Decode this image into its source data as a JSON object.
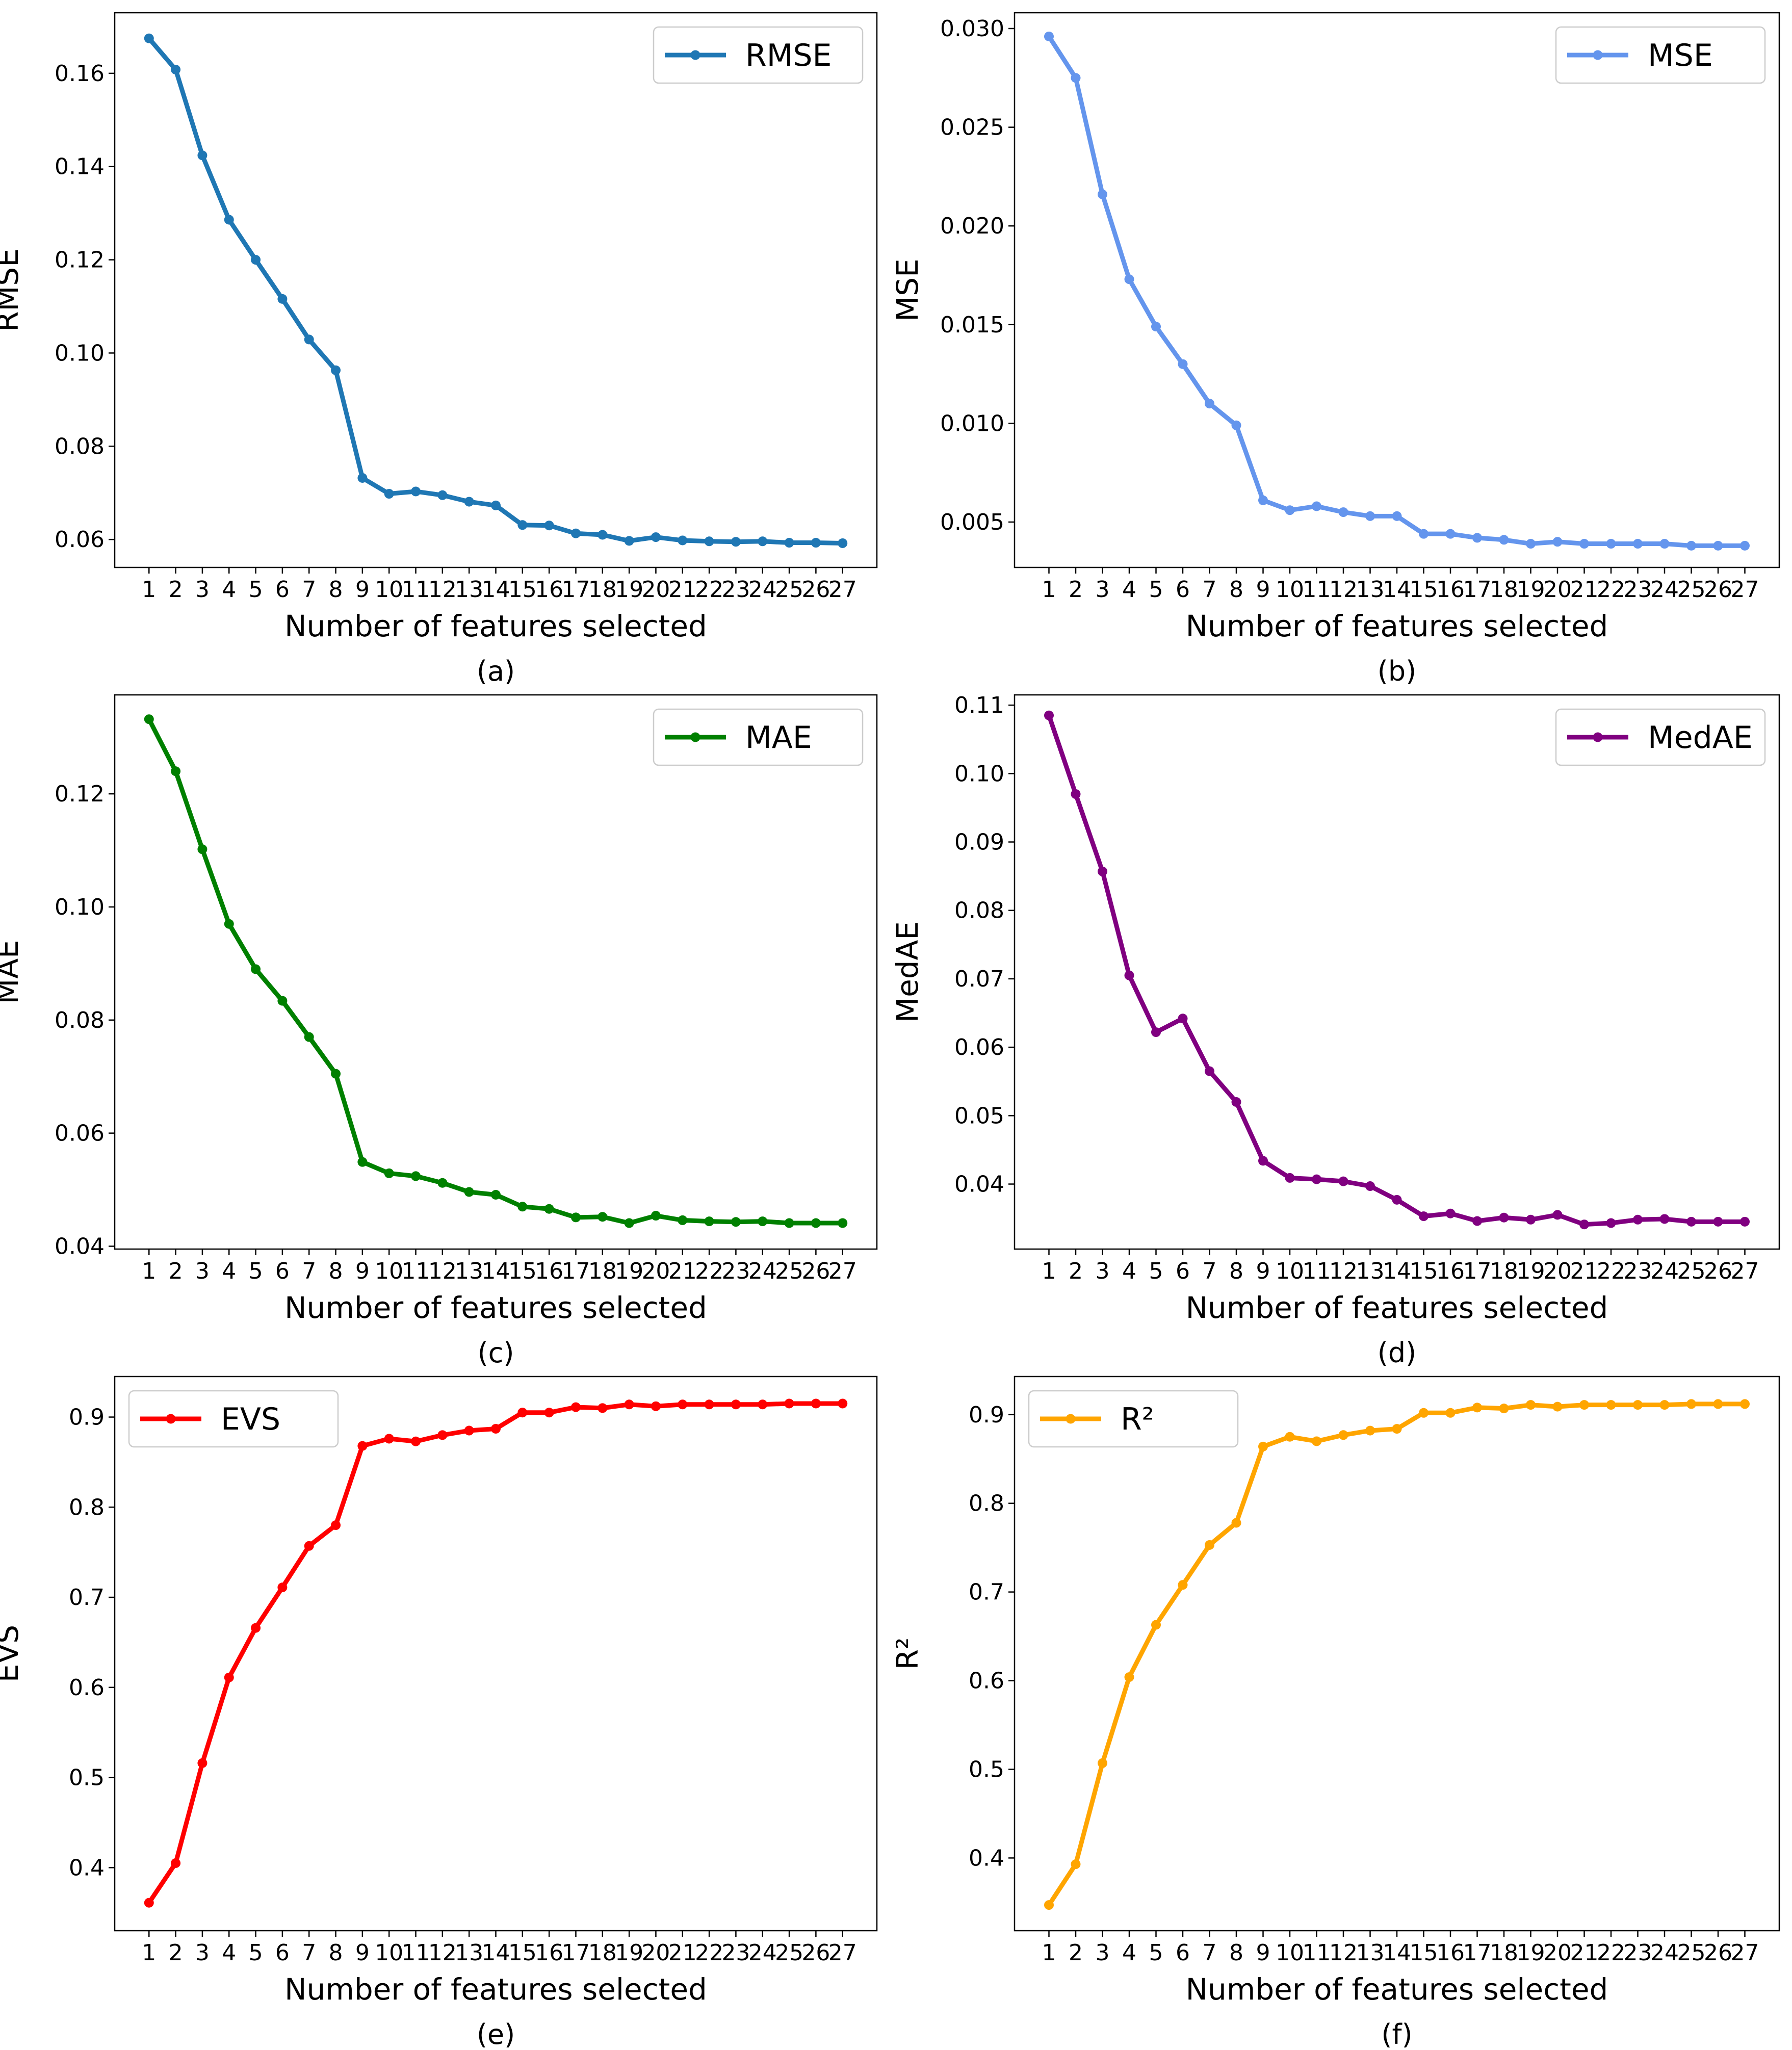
{
  "chart_data": [
    {
      "type": "line",
      "caption": "(a)",
      "title": "",
      "xlabel": "Number of features selected",
      "ylabel": "RMSE",
      "legend": "top-right",
      "color": "#1f77b4",
      "ylim": [
        0.054,
        0.173
      ],
      "yticks": [
        "0.06",
        "0.08",
        "0.10",
        "0.12",
        "0.14",
        "0.16"
      ],
      "x": [
        1,
        2,
        3,
        4,
        5,
        6,
        7,
        8,
        9,
        10,
        11,
        12,
        13,
        14,
        15,
        16,
        17,
        18,
        19,
        20,
        21,
        22,
        23,
        24,
        25,
        26,
        27
      ],
      "xtick_labels": [
        "1",
        "2",
        "3",
        "4",
        "5",
        "6",
        "7",
        "8",
        "9",
        "10",
        "11",
        "12",
        "13",
        "14",
        "15",
        "16",
        "17",
        "18",
        "19",
        "20",
        "21",
        "22",
        "23",
        "24",
        "25",
        "26",
        "27"
      ],
      "series": [
        {
          "name": "RMSE",
          "values": [
            0.1675,
            0.1608,
            0.1424,
            0.1286,
            0.12,
            0.1116,
            0.1029,
            0.0963,
            0.0732,
            0.0698,
            0.0703,
            0.0695,
            0.0681,
            0.0673,
            0.0631,
            0.063,
            0.0613,
            0.061,
            0.0597,
            0.0605,
            0.0598,
            0.0596,
            0.0595,
            0.0596,
            0.0593,
            0.0593,
            0.0592
          ]
        }
      ]
    },
    {
      "type": "line",
      "caption": "(b)",
      "title": "",
      "xlabel": "Number of features selected",
      "ylabel": "MSE",
      "legend": "top-right",
      "color": "#6495ed",
      "ylim": [
        0.0027,
        0.0308
      ],
      "yticks": [
        "0.005",
        "0.010",
        "0.015",
        "0.020",
        "0.025",
        "0.030"
      ],
      "x": [
        1,
        2,
        3,
        4,
        5,
        6,
        7,
        8,
        9,
        10,
        11,
        12,
        13,
        14,
        15,
        16,
        17,
        18,
        19,
        20,
        21,
        22,
        23,
        24,
        25,
        26,
        27
      ],
      "xtick_labels": [
        "1",
        "2",
        "3",
        "4",
        "5",
        "6",
        "7",
        "8",
        "9",
        "10",
        "11",
        "12",
        "13",
        "14",
        "15",
        "16",
        "17",
        "18",
        "19",
        "20",
        "21",
        "22",
        "23",
        "24",
        "25",
        "26",
        "27"
      ],
      "series": [
        {
          "name": "MSE",
          "values": [
            0.0296,
            0.0275,
            0.0216,
            0.0173,
            0.0149,
            0.013,
            0.011,
            0.0099,
            0.0061,
            0.0056,
            0.0058,
            0.0055,
            0.0053,
            0.0053,
            0.0044,
            0.0044,
            0.0042,
            0.0041,
            0.0039,
            0.004,
            0.0039,
            0.0039,
            0.0039,
            0.0039,
            0.0038,
            0.0038,
            0.0038
          ]
        }
      ]
    },
    {
      "type": "line",
      "caption": "(c)",
      "title": "",
      "xlabel": "Number of features selected",
      "ylabel": "MAE",
      "legend": "top-right",
      "color": "#008000",
      "ylim": [
        0.0395,
        0.1375
      ],
      "yticks": [
        "0.04",
        "0.06",
        "0.08",
        "0.10",
        "0.12"
      ],
      "x": [
        1,
        2,
        3,
        4,
        5,
        6,
        7,
        8,
        9,
        10,
        11,
        12,
        13,
        14,
        15,
        16,
        17,
        18,
        19,
        20,
        21,
        22,
        23,
        24,
        25,
        26,
        27
      ],
      "xtick_labels": [
        "1",
        "2",
        "3",
        "4",
        "5",
        "6",
        "7",
        "8",
        "9",
        "10",
        "11",
        "12",
        "13",
        "14",
        "15",
        "16",
        "17",
        "18",
        "19",
        "20",
        "21",
        "22",
        "23",
        "24",
        "25",
        "26",
        "27"
      ],
      "series": [
        {
          "name": "MAE",
          "values": [
            0.1332,
            0.124,
            0.1102,
            0.097,
            0.089,
            0.0834,
            0.077,
            0.0705,
            0.0549,
            0.0529,
            0.0524,
            0.0512,
            0.0496,
            0.0491,
            0.047,
            0.0466,
            0.0451,
            0.0452,
            0.0441,
            0.0454,
            0.0446,
            0.0444,
            0.0443,
            0.0444,
            0.0441,
            0.0441,
            0.0441
          ]
        }
      ]
    },
    {
      "type": "line",
      "caption": "(d)",
      "title": "",
      "xlabel": "Number of features selected",
      "ylabel": "MedAE",
      "legend": "top-right",
      "color": "#800080",
      "ylim": [
        0.0305,
        0.1115
      ],
      "yticks": [
        "0.04",
        "0.05",
        "0.06",
        "0.07",
        "0.08",
        "0.09",
        "0.10",
        "0.11"
      ],
      "x": [
        1,
        2,
        3,
        4,
        5,
        6,
        7,
        8,
        9,
        10,
        11,
        12,
        13,
        14,
        15,
        16,
        17,
        18,
        19,
        20,
        21,
        22,
        23,
        24,
        25,
        26,
        27
      ],
      "xtick_labels": [
        "1",
        "2",
        "3",
        "4",
        "5",
        "6",
        "7",
        "8",
        "9",
        "10",
        "11",
        "12",
        "13",
        "14",
        "15",
        "16",
        "17",
        "18",
        "19",
        "20",
        "21",
        "22",
        "23",
        "24",
        "25",
        "26",
        "27"
      ],
      "series": [
        {
          "name": "MedAE",
          "values": [
            0.1085,
            0.097,
            0.0857,
            0.0705,
            0.0622,
            0.0642,
            0.0565,
            0.052,
            0.0434,
            0.0409,
            0.0407,
            0.0404,
            0.0397,
            0.0377,
            0.0353,
            0.0357,
            0.0346,
            0.0351,
            0.0348,
            0.0355,
            0.0341,
            0.0343,
            0.0348,
            0.0349,
            0.0345,
            0.0345,
            0.0345
          ]
        }
      ]
    },
    {
      "type": "line",
      "caption": "(e)",
      "title": "",
      "xlabel": "Number of features selected",
      "ylabel": "EVS",
      "legend": "top-left",
      "color": "#ff0000",
      "ylim": [
        0.33,
        0.945
      ],
      "yticks": [
        "0.4",
        "0.5",
        "0.6",
        "0.7",
        "0.8",
        "0.9"
      ],
      "x": [
        1,
        2,
        3,
        4,
        5,
        6,
        7,
        8,
        9,
        10,
        11,
        12,
        13,
        14,
        15,
        16,
        17,
        18,
        19,
        20,
        21,
        22,
        23,
        24,
        25,
        26,
        27
      ],
      "xtick_labels": [
        "1",
        "2",
        "3",
        "4",
        "5",
        "6",
        "7",
        "8",
        "9",
        "10",
        "11",
        "12",
        "13",
        "14",
        "15",
        "16",
        "17",
        "18",
        "19",
        "20",
        "21",
        "22",
        "23",
        "24",
        "25",
        "26",
        "27"
      ],
      "series": [
        {
          "name": "EVS",
          "values": [
            0.361,
            0.405,
            0.516,
            0.611,
            0.666,
            0.711,
            0.757,
            0.78,
            0.868,
            0.876,
            0.873,
            0.88,
            0.885,
            0.887,
            0.905,
            0.905,
            0.911,
            0.91,
            0.914,
            0.912,
            0.914,
            0.914,
            0.914,
            0.914,
            0.915,
            0.915,
            0.915
          ]
        }
      ]
    },
    {
      "type": "line",
      "caption": "(f)",
      "title": "",
      "xlabel": "Number of features selected",
      "ylabel": "R²",
      "legend": "top-left",
      "color": "#ffa500",
      "ylim": [
        0.318,
        0.943
      ],
      "yticks": [
        "0.4",
        "0.5",
        "0.6",
        "0.7",
        "0.8",
        "0.9"
      ],
      "x": [
        1,
        2,
        3,
        4,
        5,
        6,
        7,
        8,
        9,
        10,
        11,
        12,
        13,
        14,
        15,
        16,
        17,
        18,
        19,
        20,
        21,
        22,
        23,
        24,
        25,
        26,
        27
      ],
      "xtick_labels": [
        "1",
        "2",
        "3",
        "4",
        "5",
        "6",
        "7",
        "8",
        "9",
        "10",
        "11",
        "12",
        "13",
        "14",
        "15",
        "16",
        "17",
        "18",
        "19",
        "20",
        "21",
        "22",
        "23",
        "24",
        "25",
        "26",
        "27"
      ],
      "series": [
        {
          "name": "R²",
          "values": [
            0.347,
            0.393,
            0.507,
            0.604,
            0.663,
            0.708,
            0.753,
            0.778,
            0.864,
            0.875,
            0.87,
            0.877,
            0.882,
            0.884,
            0.902,
            0.902,
            0.908,
            0.907,
            0.911,
            0.909,
            0.911,
            0.911,
            0.911,
            0.911,
            0.912,
            0.912,
            0.912
          ]
        }
      ]
    }
  ]
}
